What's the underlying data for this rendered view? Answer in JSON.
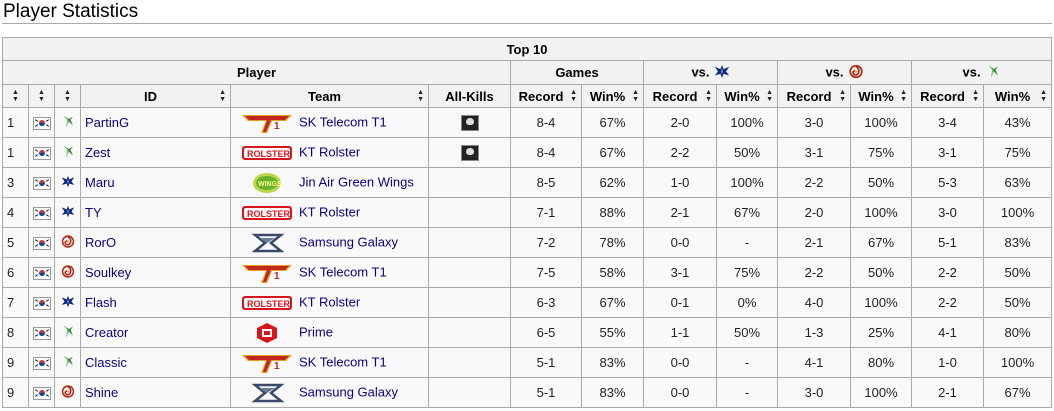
{
  "page": {
    "heading": "Player Statistics"
  },
  "table": {
    "caption": "Top 10",
    "group_headers": {
      "player": "Player",
      "games": "Games",
      "vs_label": "vs."
    },
    "vs_races": [
      "terran-icon",
      "zerg-icon",
      "protoss-icon"
    ],
    "columns": {
      "rank": "",
      "flag": "",
      "race": "",
      "id": "ID",
      "team": "Team",
      "allkills": "All-Kills",
      "record": "Record",
      "winpct": "Win%"
    },
    "sort_glyph_up": "▲",
    "sort_glyph_down": "▼",
    "rows": [
      {
        "rank": "1",
        "flag": "south-korea-flag",
        "race": "protoss",
        "id": "PartinG",
        "team_logo": "sk-telecom-t1-logo",
        "team": "SK Telecom T1",
        "allkill": true,
        "rec": "8-4",
        "win": "67%",
        "t_rec": "2-0",
        "t_win": "100%",
        "z_rec": "3-0",
        "z_win": "100%",
        "p_rec": "3-4",
        "p_win": "43%"
      },
      {
        "rank": "1",
        "flag": "south-korea-flag",
        "race": "protoss",
        "id": "Zest",
        "team_logo": "kt-rolster-logo",
        "team": "KT Rolster",
        "allkill": true,
        "rec": "8-4",
        "win": "67%",
        "t_rec": "2-2",
        "t_win": "50%",
        "z_rec": "3-1",
        "z_win": "75%",
        "p_rec": "3-1",
        "p_win": "75%"
      },
      {
        "rank": "3",
        "flag": "south-korea-flag",
        "race": "terran",
        "id": "Maru",
        "team_logo": "jin-air-green-wings-logo",
        "team": "Jin Air Green Wings",
        "allkill": false,
        "rec": "8-5",
        "win": "62%",
        "t_rec": "1-0",
        "t_win": "100%",
        "z_rec": "2-2",
        "z_win": "50%",
        "p_rec": "5-3",
        "p_win": "63%"
      },
      {
        "rank": "4",
        "flag": "south-korea-flag",
        "race": "terran",
        "id": "TY",
        "team_logo": "kt-rolster-logo",
        "team": "KT Rolster",
        "allkill": false,
        "rec": "7-1",
        "win": "88%",
        "t_rec": "2-1",
        "t_win": "67%",
        "z_rec": "2-0",
        "z_win": "100%",
        "p_rec": "3-0",
        "p_win": "100%"
      },
      {
        "rank": "5",
        "flag": "south-korea-flag",
        "race": "zerg",
        "id": "RorO",
        "team_logo": "samsung-galaxy-logo",
        "team": "Samsung Galaxy",
        "allkill": false,
        "rec": "7-2",
        "win": "78%",
        "t_rec": "0-0",
        "t_win": "-",
        "z_rec": "2-1",
        "z_win": "67%",
        "p_rec": "5-1",
        "p_win": "83%"
      },
      {
        "rank": "6",
        "flag": "south-korea-flag",
        "race": "zerg",
        "id": "Soulkey",
        "team_logo": "sk-telecom-t1-logo",
        "team": "SK Telecom T1",
        "allkill": false,
        "rec": "7-5",
        "win": "58%",
        "t_rec": "3-1",
        "t_win": "75%",
        "z_rec": "2-2",
        "z_win": "50%",
        "p_rec": "2-2",
        "p_win": "50%"
      },
      {
        "rank": "7",
        "flag": "south-korea-flag",
        "race": "terran",
        "id": "Flash",
        "team_logo": "kt-rolster-logo",
        "team": "KT Rolster",
        "allkill": false,
        "rec": "6-3",
        "win": "67%",
        "t_rec": "0-1",
        "t_win": "0%",
        "z_rec": "4-0",
        "z_win": "100%",
        "p_rec": "2-2",
        "p_win": "50%"
      },
      {
        "rank": "8",
        "flag": "south-korea-flag",
        "race": "protoss",
        "id": "Creator",
        "team_logo": "prime-logo",
        "team": "Prime",
        "allkill": false,
        "rec": "6-5",
        "win": "55%",
        "t_rec": "1-1",
        "t_win": "50%",
        "z_rec": "1-3",
        "z_win": "25%",
        "p_rec": "4-1",
        "p_win": "80%"
      },
      {
        "rank": "9",
        "flag": "south-korea-flag",
        "race": "protoss",
        "id": "Classic",
        "team_logo": "sk-telecom-t1-logo",
        "team": "SK Telecom T1",
        "allkill": false,
        "rec": "5-1",
        "win": "83%",
        "t_rec": "0-0",
        "t_win": "-",
        "z_rec": "4-1",
        "z_win": "80%",
        "p_rec": "1-0",
        "p_win": "100%"
      },
      {
        "rank": "9",
        "flag": "south-korea-flag",
        "race": "zerg",
        "id": "Shine",
        "team_logo": "samsung-galaxy-logo",
        "team": "Samsung Galaxy",
        "allkill": false,
        "rec": "5-1",
        "win": "83%",
        "t_rec": "0-0",
        "t_win": "-",
        "z_rec": "3-0",
        "z_win": "100%",
        "p_rec": "2-1",
        "p_win": "67%"
      }
    ]
  },
  "colors": {
    "header_bg": "#f2f2f2",
    "border": "#aaaaaa",
    "link": "#0b0080",
    "terran": "#0b2a7a",
    "zerg": "#b0291a",
    "protoss": "#2e8a2e"
  }
}
